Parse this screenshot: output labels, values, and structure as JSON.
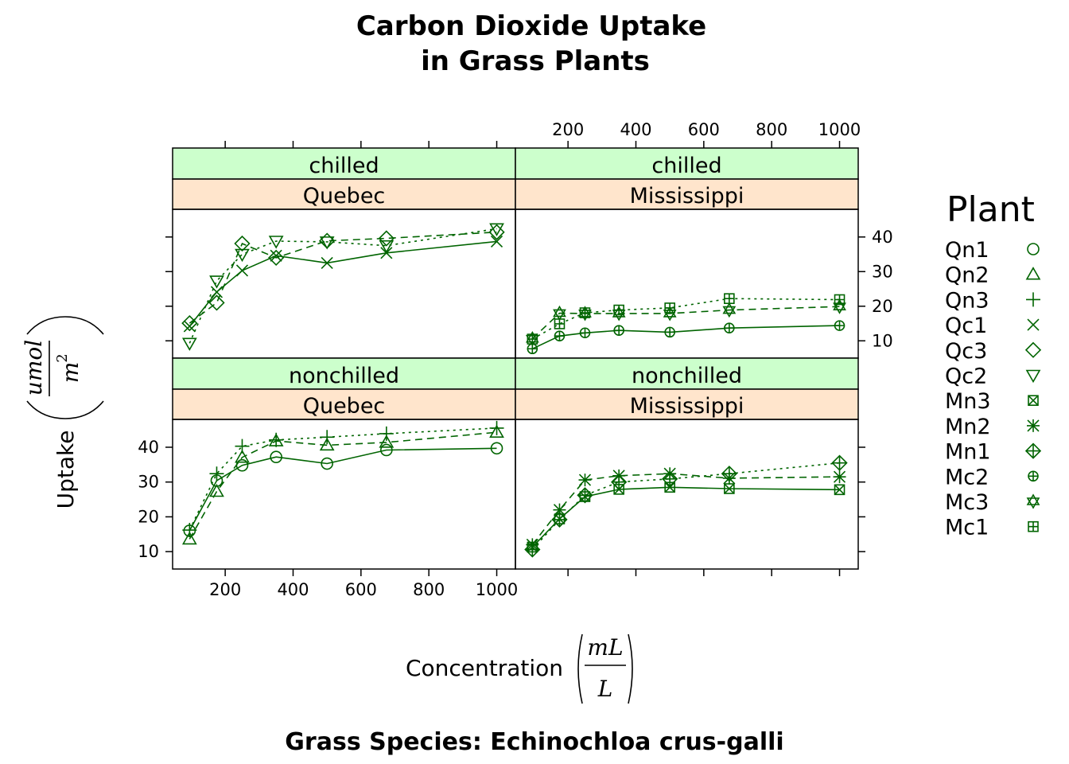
{
  "chart_data": {
    "type": "line",
    "title_lines": [
      "Carbon Dioxide Uptake",
      "in Grass Plants"
    ],
    "xlabel": "Concentration",
    "xlabel_units": {
      "num": "mL",
      "den": "L"
    },
    "ylabel": "Uptake",
    "ylabel_units": {
      "num": "umol",
      "den": "m",
      "den_exp": "2"
    },
    "subtitle": "Grass Species: Echinochloa crus-galli",
    "xlim": [
      45,
      1055
    ],
    "ylim": [
      5,
      48
    ],
    "x_ticks": [
      200,
      400,
      600,
      800,
      1000
    ],
    "y_ticks": [
      10,
      20,
      30,
      40
    ],
    "line_color": "#006400",
    "strip_colors": {
      "treatment": "#ccffcc",
      "type": "#ffe5cc"
    },
    "legend": {
      "title": "Plant",
      "placement": "right",
      "entries": [
        {
          "label": "Qn1",
          "symbol": "circle"
        },
        {
          "label": "Qn2",
          "symbol": "triangle"
        },
        {
          "label": "Qn3",
          "symbol": "plus"
        },
        {
          "label": "Qc1",
          "symbol": "cross"
        },
        {
          "label": "Qc3",
          "symbol": "diamond"
        },
        {
          "label": "Qc2",
          "symbol": "triangle-down"
        },
        {
          "label": "Mn3",
          "symbol": "boxed-x"
        },
        {
          "label": "Mn2",
          "symbol": "asterisk"
        },
        {
          "label": "Mn1",
          "symbol": "diamond-plus"
        },
        {
          "label": "Mc2",
          "symbol": "circle-plus"
        },
        {
          "label": "Mc3",
          "symbol": "star-of-david"
        },
        {
          "label": "Mc1",
          "symbol": "boxed-plus"
        }
      ]
    },
    "x": [
      95,
      175,
      250,
      350,
      500,
      675,
      1000
    ],
    "panels": [
      {
        "id": "chilled-quebec",
        "treatment": "chilled",
        "type": "Quebec",
        "row": 0,
        "col": 0,
        "series": [
          {
            "name": "Qc1",
            "symbol": "cross",
            "dash": "solid",
            "values": [
              14.2,
              24.1,
              30.3,
              34.6,
              32.5,
              35.4,
              38.7
            ]
          },
          {
            "name": "Qc3",
            "symbol": "diamond",
            "dash": "dashed",
            "values": [
              15.1,
              21.0,
              38.1,
              34.0,
              38.9,
              39.6,
              41.4
            ]
          },
          {
            "name": "Qc2",
            "symbol": "triangle-down",
            "dash": "dotted",
            "values": [
              9.3,
              27.3,
              35.0,
              38.8,
              38.6,
              37.5,
              42.4
            ]
          }
        ]
      },
      {
        "id": "chilled-mississippi",
        "treatment": "chilled",
        "type": "Mississippi",
        "row": 0,
        "col": 1,
        "series": [
          {
            "name": "Mc2",
            "symbol": "circle-plus",
            "dash": "solid",
            "values": [
              7.7,
              11.4,
              12.3,
              13.0,
              12.5,
              13.7,
              14.4
            ]
          },
          {
            "name": "Mc3",
            "symbol": "star-of-david",
            "dash": "dashed",
            "values": [
              10.6,
              18.0,
              17.9,
              17.9,
              17.9,
              18.9,
              19.9
            ]
          },
          {
            "name": "Mc1",
            "symbol": "boxed-plus",
            "dash": "dotted",
            "values": [
              10.5,
              14.9,
              18.1,
              18.9,
              19.5,
              22.2,
              21.9
            ]
          }
        ]
      },
      {
        "id": "nonchilled-quebec",
        "treatment": "nonchilled",
        "type": "Quebec",
        "row": 1,
        "col": 0,
        "series": [
          {
            "name": "Qn1",
            "symbol": "circle",
            "dash": "solid",
            "values": [
              16.0,
              30.4,
              34.8,
              37.2,
              35.3,
              39.2,
              39.7
            ]
          },
          {
            "name": "Qn2",
            "symbol": "triangle",
            "dash": "dashed",
            "values": [
              13.6,
              27.3,
              37.1,
              41.8,
              40.6,
              41.4,
              44.3
            ]
          },
          {
            "name": "Qn3",
            "symbol": "plus",
            "dash": "dotted",
            "values": [
              16.2,
              32.4,
              40.3,
              42.1,
              42.9,
              43.9,
              45.5
            ]
          }
        ]
      },
      {
        "id": "nonchilled-mississippi",
        "treatment": "nonchilled",
        "type": "Mississippi",
        "row": 1,
        "col": 1,
        "series": [
          {
            "name": "Mn3",
            "symbol": "boxed-x",
            "dash": "solid",
            "values": [
              11.3,
              19.4,
              25.8,
              27.9,
              28.5,
              28.1,
              27.8
            ]
          },
          {
            "name": "Mn2",
            "symbol": "asterisk",
            "dash": "dashed",
            "values": [
              12.0,
              22.0,
              30.6,
              31.8,
              32.4,
              31.1,
              31.5
            ]
          },
          {
            "name": "Mn1",
            "symbol": "diamond-plus",
            "dash": "dotted",
            "values": [
              10.6,
              19.2,
              26.2,
              30.0,
              30.9,
              32.4,
              35.5
            ]
          }
        ]
      }
    ]
  }
}
